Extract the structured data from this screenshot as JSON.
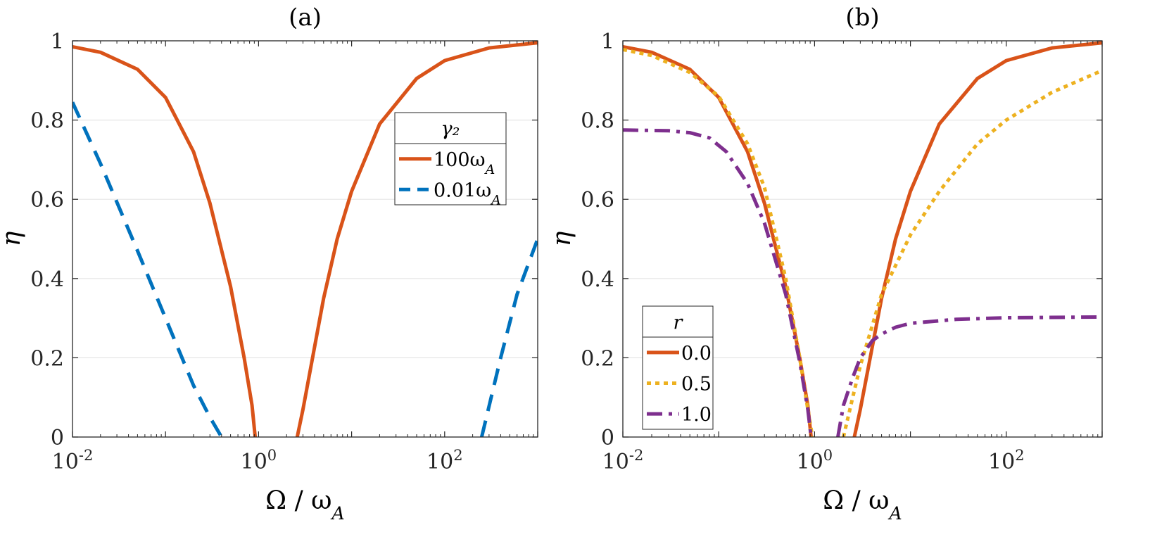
{
  "chart_data": [
    {
      "type": "line",
      "title": "(a)",
      "xlabel": "Ω / ω_A",
      "ylabel": "η",
      "xscale": "log",
      "xlim": [
        0.01,
        1000
      ],
      "ylim": [
        0,
        1
      ],
      "grid": "y",
      "x_ticks": [
        {
          "value": 0.01,
          "label": "10^-2"
        },
        {
          "value": 1,
          "label": "10^0"
        },
        {
          "value": 100,
          "label": "10^2"
        }
      ],
      "y_ticks": [
        {
          "value": 0,
          "label": "0"
        },
        {
          "value": 0.2,
          "label": "0.2"
        },
        {
          "value": 0.4,
          "label": "0.4"
        },
        {
          "value": 0.6,
          "label": "0.6"
        },
        {
          "value": 0.8,
          "label": "0.8"
        },
        {
          "value": 1,
          "label": "1"
        }
      ],
      "legend": {
        "title": "γ₂",
        "position": "top-right",
        "entries": [
          "100ω_A",
          "0.01ω_A"
        ]
      },
      "series": [
        {
          "name": "100ω_A",
          "color": "#D95319",
          "style": "solid",
          "segments": [
            [
              [
                0.01,
                0.985
              ],
              [
                0.02,
                0.971
              ],
              [
                0.05,
                0.928
              ],
              [
                0.1,
                0.857
              ],
              [
                0.2,
                0.72
              ],
              [
                0.3,
                0.59
              ],
              [
                0.5,
                0.38
              ],
              [
                0.7,
                0.2
              ],
              [
                0.85,
                0.08
              ],
              [
                0.92,
                0.0
              ]
            ],
            [
              [
                2.6,
                0.0
              ],
              [
                3,
                0.07
              ],
              [
                5,
                0.35
              ],
              [
                7,
                0.5
              ],
              [
                10,
                0.62
              ],
              [
                20,
                0.79
              ],
              [
                50,
                0.905
              ],
              [
                100,
                0.95
              ],
              [
                300,
                0.982
              ],
              [
                1000,
                0.995
              ]
            ]
          ]
        },
        {
          "name": "0.01ω_A",
          "color": "#0072BD",
          "style": "dashed",
          "segments": [
            [
              [
                0.01,
                0.845
              ],
              [
                0.02,
                0.69
              ],
              [
                0.05,
                0.47
              ],
              [
                0.1,
                0.3
              ],
              [
                0.2,
                0.13
              ],
              [
                0.3,
                0.05
              ],
              [
                0.4,
                0.0
              ]
            ],
            [
              [
                250,
                0.0
              ],
              [
                400,
                0.2
              ],
              [
                600,
                0.36
              ],
              [
                1000,
                0.5
              ]
            ]
          ]
        }
      ]
    },
    {
      "type": "line",
      "title": "(b)",
      "xlabel": "Ω / ω_A",
      "ylabel": "η",
      "xscale": "log",
      "xlim": [
        0.01,
        1000
      ],
      "ylim": [
        0,
        1
      ],
      "grid": "y",
      "x_ticks": [
        {
          "value": 0.01,
          "label": "10^-2"
        },
        {
          "value": 1,
          "label": "10^0"
        },
        {
          "value": 100,
          "label": "10^2"
        }
      ],
      "y_ticks": [
        {
          "value": 0,
          "label": "0"
        },
        {
          "value": 0.2,
          "label": "0.2"
        },
        {
          "value": 0.4,
          "label": "0.4"
        },
        {
          "value": 0.6,
          "label": "0.6"
        },
        {
          "value": 0.8,
          "label": "0.8"
        },
        {
          "value": 1,
          "label": "1"
        }
      ],
      "legend": {
        "title": "r",
        "position": "bottom-left",
        "entries": [
          "0.0",
          "0.5",
          "1.0"
        ]
      },
      "series": [
        {
          "name": "0.0",
          "color": "#D95319",
          "style": "solid",
          "segments": [
            [
              [
                0.01,
                0.985
              ],
              [
                0.02,
                0.971
              ],
              [
                0.05,
                0.928
              ],
              [
                0.1,
                0.857
              ],
              [
                0.2,
                0.72
              ],
              [
                0.3,
                0.59
              ],
              [
                0.5,
                0.38
              ],
              [
                0.7,
                0.2
              ],
              [
                0.85,
                0.08
              ],
              [
                0.92,
                0.0
              ]
            ],
            [
              [
                2.6,
                0.0
              ],
              [
                3,
                0.07
              ],
              [
                5,
                0.35
              ],
              [
                7,
                0.5
              ],
              [
                10,
                0.62
              ],
              [
                20,
                0.79
              ],
              [
                50,
                0.905
              ],
              [
                100,
                0.95
              ],
              [
                300,
                0.982
              ],
              [
                1000,
                0.995
              ]
            ]
          ]
        },
        {
          "name": "0.5",
          "color": "#EDB120",
          "style": "dotted",
          "segments": [
            [
              [
                0.01,
                0.978
              ],
              [
                0.02,
                0.963
              ],
              [
                0.05,
                0.92
              ],
              [
                0.1,
                0.86
              ],
              [
                0.2,
                0.74
              ],
              [
                0.3,
                0.63
              ],
              [
                0.5,
                0.4
              ],
              [
                0.7,
                0.2
              ],
              [
                0.85,
                0.07
              ],
              [
                0.95,
                0.0
              ]
            ],
            [
              [
                2.0,
                0.0
              ],
              [
                2.5,
                0.1
              ],
              [
                3,
                0.18
              ],
              [
                5,
                0.36
              ],
              [
                10,
                0.51
              ],
              [
                20,
                0.62
              ],
              [
                50,
                0.74
              ],
              [
                100,
                0.8
              ],
              [
                300,
                0.87
              ],
              [
                1000,
                0.925
              ]
            ]
          ]
        },
        {
          "name": "1.0",
          "color": "#7E2F8E",
          "style": "dashdot",
          "segments": [
            [
              [
                0.01,
                0.775
              ],
              [
                0.03,
                0.773
              ],
              [
                0.05,
                0.768
              ],
              [
                0.08,
                0.755
              ],
              [
                0.12,
                0.72
              ],
              [
                0.2,
                0.64
              ],
              [
                0.3,
                0.54
              ],
              [
                0.5,
                0.36
              ],
              [
                0.7,
                0.19
              ],
              [
                0.85,
                0.07
              ],
              [
                0.92,
                0.0
              ]
            ],
            [
              [
                1.75,
                0.0
              ],
              [
                2,
                0.08
              ],
              [
                2.5,
                0.15
              ],
              [
                3,
                0.2
              ],
              [
                4,
                0.243
              ],
              [
                5,
                0.26
              ],
              [
                7,
                0.277
              ],
              [
                10,
                0.287
              ],
              [
                30,
                0.297
              ],
              [
                100,
                0.301
              ],
              [
                1000,
                0.303
              ]
            ]
          ]
        }
      ]
    }
  ]
}
